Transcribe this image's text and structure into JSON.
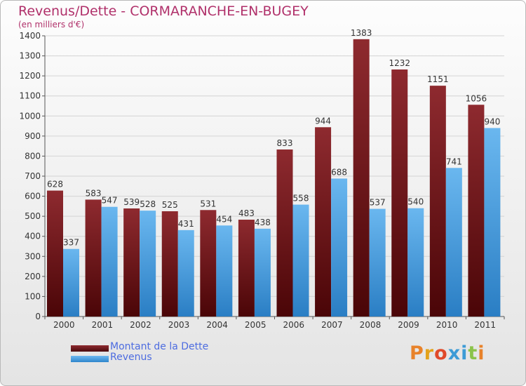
{
  "chart_data": {
    "type": "bar",
    "title": "Revenus/Dette - CORMARANCHE-EN-BUGEY",
    "subtitle": "(en milliers d'€)",
    "categories": [
      "2000",
      "2001",
      "2002",
      "2003",
      "2004",
      "2005",
      "2006",
      "2007",
      "2008",
      "2009",
      "2010",
      "2011"
    ],
    "series": [
      {
        "name": "Montant de la Dette",
        "values": [
          628,
          583,
          539,
          525,
          531,
          483,
          833,
          944,
          1383,
          1232,
          1151,
          1056
        ],
        "color": "#7a1b1f"
      },
      {
        "name": "Revenus",
        "values": [
          337,
          547,
          528,
          431,
          454,
          438,
          558,
          688,
          537,
          540,
          741,
          940
        ],
        "color": "#4a9fe0"
      }
    ],
    "ylim": [
      0,
      1400
    ],
    "yticks": [
      0,
      100,
      200,
      300,
      400,
      500,
      600,
      700,
      800,
      900,
      1000,
      1100,
      1200,
      1300,
      1400
    ],
    "grid": true,
    "legend_position": "bottom-left"
  },
  "logo": {
    "text": "Proxiti",
    "colors": [
      "#e8822a",
      "#e3a21a",
      "#e04a2a",
      "#3d9bd6",
      "#3d9bd6",
      "#8bc34a",
      "#e8822a"
    ]
  }
}
